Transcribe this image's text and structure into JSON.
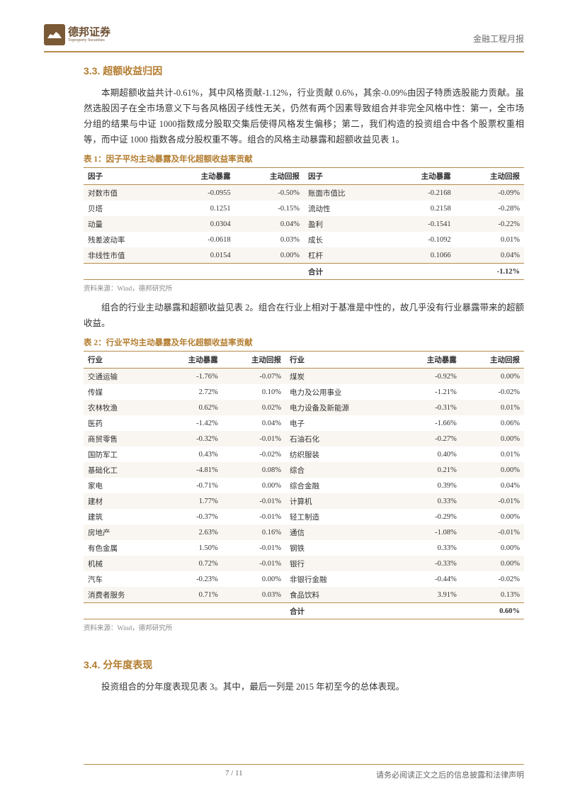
{
  "header": {
    "logo_name": "德邦证券",
    "logo_sub": "Toproperty Securities",
    "report_type": "金融工程月报"
  },
  "section33": {
    "title": "3.3. 超额收益归因",
    "p1": "本期超额收益共计-0.61%，其中风格贡献-1.12%，行业贡献 0.6%，其余-0.09%由因子特质选股能力贡献。虽然选股因子在全市场意义下与各风格因子线性无关，仍然有两个因素导致组合并非完全风格中性：第一，全市场分组的结果与中证 1000指数成分股取交集后使得风格发生偏移；第二，我们构造的投资组合中各个股票权重相等，而中证 1000 指数各成分股权重不等。组合的风格主动暴露和超额收益见表 1。"
  },
  "table1": {
    "title": "表 1：因子平均主动暴露及年化超额收益率贡献",
    "source": "资料来源：Wind，德邦研究所",
    "headers": [
      "因子",
      "主动暴露",
      "主动回报",
      "因子",
      "主动暴露",
      "主动回报"
    ],
    "rows": [
      [
        "对数市值",
        "-0.0955",
        "-0.50%",
        "账面市值比",
        "-0.2168",
        "-0.09%"
      ],
      [
        "贝塔",
        "0.1251",
        "-0.15%",
        "流动性",
        "0.2158",
        "-0.28%"
      ],
      [
        "动量",
        "0.0304",
        "0.04%",
        "盈利",
        "-0.1541",
        "-0.22%"
      ],
      [
        "残差波动率",
        "-0.0618",
        "0.03%",
        "成长",
        "-0.1092",
        "0.01%"
      ],
      [
        "非线性市值",
        "0.0154",
        "0.00%",
        "杠杆",
        "0.1066",
        "0.04%"
      ]
    ],
    "total": [
      "",
      "",
      "",
      "合计",
      "",
      "-1.12%"
    ]
  },
  "section33b": {
    "p": "组合的行业主动暴露和超额收益见表 2。组合在行业上相对于基准是中性的，故几乎没有行业暴露带来的超额收益。"
  },
  "table2": {
    "title": "表 2：行业平均主动暴露及年化超额收益率贡献",
    "source": "资料来源：Wind，德邦研究所",
    "headers": [
      "行业",
      "主动暴露",
      "主动回报",
      "行业",
      "主动暴露",
      "主动回报"
    ],
    "rows": [
      [
        "交通运输",
        "-1.76%",
        "-0.07%",
        "煤炭",
        "-0.92%",
        "0.00%"
      ],
      [
        "传媒",
        "2.72%",
        "0.10%",
        "电力及公用事业",
        "-1.21%",
        "-0.02%"
      ],
      [
        "农林牧渔",
        "0.62%",
        "0.02%",
        "电力设备及新能源",
        "-0.31%",
        "0.01%"
      ],
      [
        "医药",
        "-1.42%",
        "0.04%",
        "电子",
        "-1.66%",
        "0.06%"
      ],
      [
        "商贸零售",
        "-0.32%",
        "-0.01%",
        "石油石化",
        "-0.27%",
        "0.00%"
      ],
      [
        "国防军工",
        "0.43%",
        "-0.02%",
        "纺织服装",
        "0.40%",
        "0.01%"
      ],
      [
        "基础化工",
        "-4.81%",
        "0.08%",
        "综合",
        "0.21%",
        "0.00%"
      ],
      [
        "家电",
        "-0.71%",
        "0.00%",
        "综合金融",
        "0.39%",
        "0.04%"
      ],
      [
        "建材",
        "1.77%",
        "-0.01%",
        "计算机",
        "0.33%",
        "-0.01%"
      ],
      [
        "建筑",
        "-0.37%",
        "-0.01%",
        "轻工制造",
        "-0.29%",
        "0.00%"
      ],
      [
        "房地产",
        "2.63%",
        "0.16%",
        "通信",
        "-1.08%",
        "-0.01%"
      ],
      [
        "有色金属",
        "1.50%",
        "-0.01%",
        "钢铁",
        "0.33%",
        "0.00%"
      ],
      [
        "机械",
        "0.72%",
        "-0.01%",
        "银行",
        "-0.33%",
        "0.00%"
      ],
      [
        "汽车",
        "-0.23%",
        "0.00%",
        "非银行金融",
        "-0.44%",
        "-0.02%"
      ],
      [
        "消费者服务",
        "0.71%",
        "0.03%",
        "食品饮料",
        "3.91%",
        "0.13%"
      ]
    ],
    "total": [
      "",
      "",
      "",
      "合计",
      "",
      "0.60%"
    ]
  },
  "section34": {
    "title": "3.4. 分年度表现",
    "p1": "投资组合的分年度表现见表 3。其中，最后一列是 2015 年初至今的总体表现。"
  },
  "footer": {
    "page": "7 / 11",
    "disclaimer": "请务必阅读正文之后的信息披露和法律声明"
  },
  "styles": {
    "accent_color": "#b37c2e",
    "rule_color": "#b78b4c",
    "row_alt_bg": "#f9f6f1"
  }
}
